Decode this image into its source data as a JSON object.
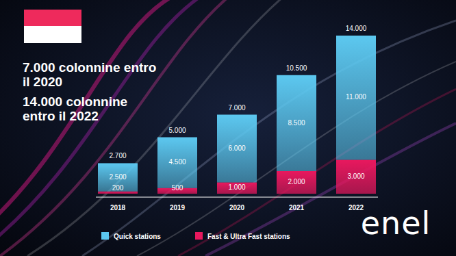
{
  "chart_data": {
    "type": "bar",
    "stacked": true,
    "data_labels": true,
    "tick_labels": "x",
    "grid": false,
    "legend": "bottom left",
    "annotations": [
      "7.000 colonnine entro il 2020",
      "14.000 colonnine entro il 2022"
    ],
    "categories": [
      "2018",
      "2019",
      "2020",
      "2021",
      "2022"
    ],
    "series": [
      {
        "name": "Quick stations",
        "color": "#5cc8f0",
        "values": [
          2500,
          4500,
          6000,
          8500,
          11000
        ],
        "value_labels": [
          "2.500",
          "4.500",
          "6.000",
          "8.500",
          "11.000"
        ]
      },
      {
        "name": "Fast & Ultra Fast stations",
        "color": "#e8185e",
        "values": [
          200,
          500,
          1000,
          2000,
          3000
        ],
        "value_labels": [
          "200",
          "500",
          "1.000",
          "2.000",
          "3.000"
        ]
      }
    ],
    "totals": {
      "values": [
        2700,
        5000,
        7000,
        10500,
        14000
      ],
      "value_labels": [
        "2.700",
        "5.000",
        "7.000",
        "10.500",
        "14.000"
      ]
    },
    "ylim": [
      0,
      14000
    ],
    "logo": "enel"
  }
}
